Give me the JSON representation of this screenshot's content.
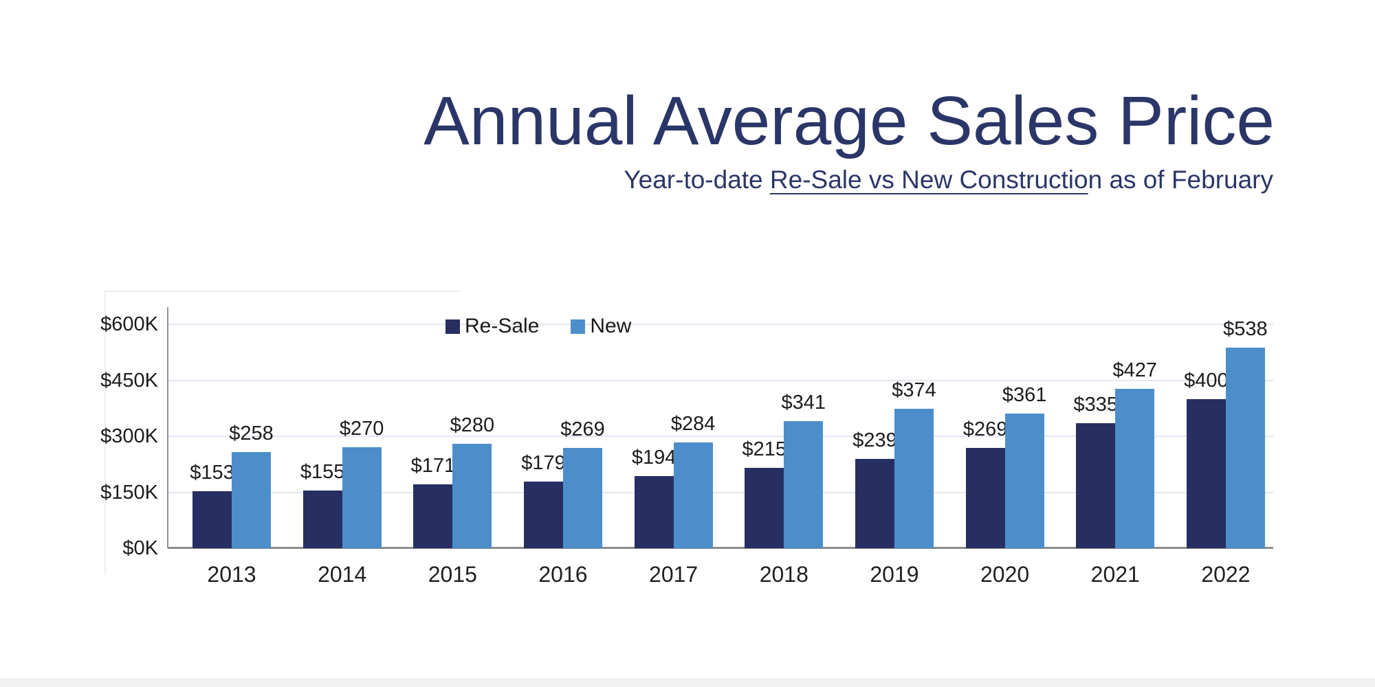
{
  "header": {
    "title": "Annual Average Sales Price",
    "subtitle_prefix": "Year-to-date ",
    "subtitle_underlined": "Re-Sale vs New Constructio",
    "subtitle_suffix": "n as of February"
  },
  "chart_data": {
    "type": "bar",
    "title": "Annual Average Sales Price",
    "subtitle": "Year-to-date Re-Sale vs New Construction as of February",
    "categories": [
      "2013",
      "2014",
      "2015",
      "2016",
      "2017",
      "2018",
      "2019",
      "2020",
      "2021",
      "2022"
    ],
    "series": [
      {
        "name": "Re-Sale",
        "color": "#272f62",
        "values": [
          153,
          155,
          171,
          179,
          194,
          215,
          239,
          269,
          335,
          400
        ]
      },
      {
        "name": "New",
        "color": "#4c8ecb",
        "values": [
          258,
          270,
          280,
          269,
          284,
          341,
          374,
          361,
          427,
          538
        ]
      }
    ],
    "value_prefix": "$",
    "bar_value_labels_shown": true,
    "y_tick_labels": [
      "$600K",
      "$450K",
      "$300K",
      "$150K",
      "$0K"
    ],
    "ylim": [
      0,
      600
    ],
    "grid": "horizontal-light",
    "legend_position": "top-center-inside",
    "xlabel": "",
    "ylabel": ""
  },
  "colors": {
    "resale_bar": "#272f62",
    "new_bar": "#4c8ecb",
    "title_navy": "#2b3668",
    "axis_gray": "#8c8c8c",
    "gridline": "#e2e8f1",
    "label_text": "#1c1c1c"
  }
}
